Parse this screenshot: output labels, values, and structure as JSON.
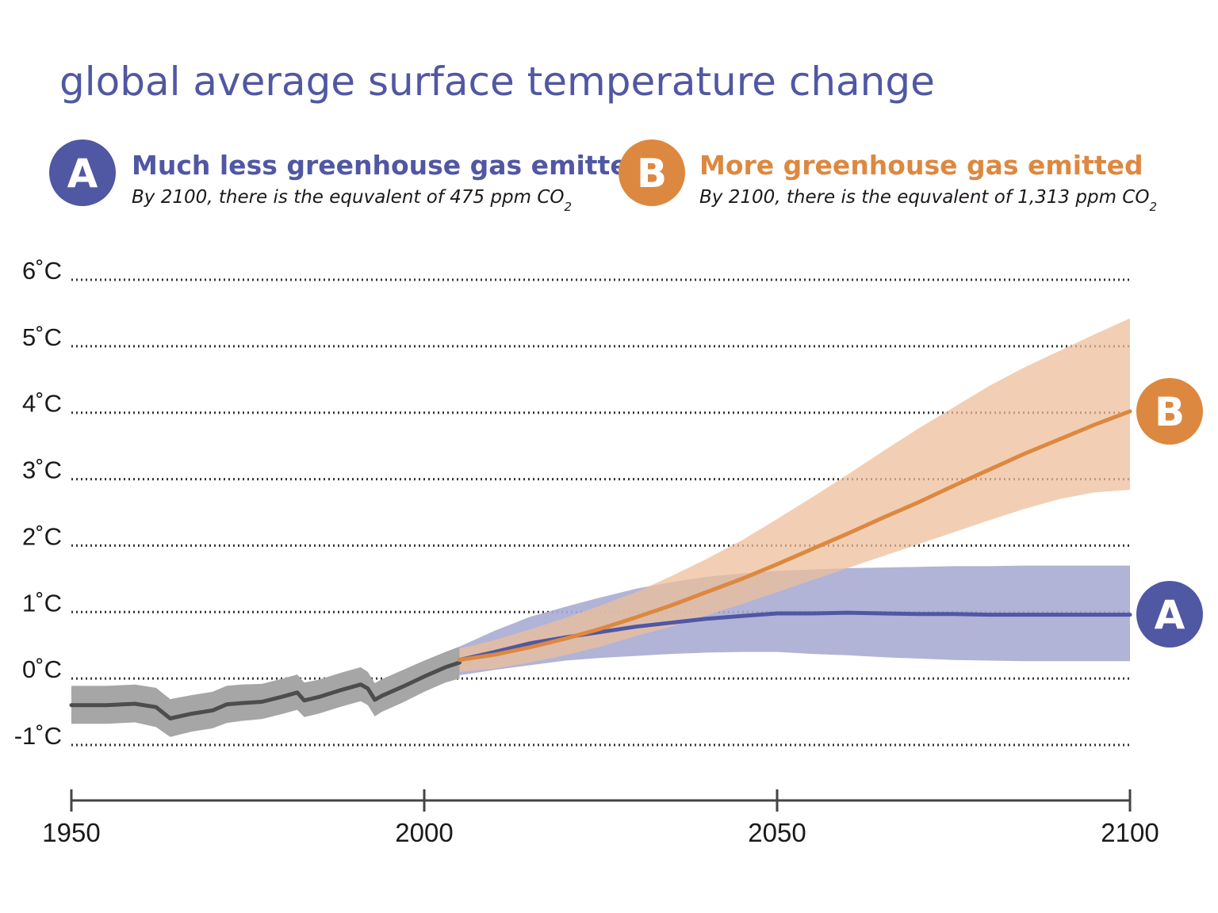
{
  "title": "global average surface temperature change",
  "legend": {
    "a": {
      "letter": "A",
      "heading": "Much less greenhouse gas emitted",
      "sub_prefix": "By 2100, there is the equvalent of 475 ppm CO",
      "sub_subscript": "2",
      "color": "#5057a3"
    },
    "b": {
      "letter": "B",
      "heading": "More greenhouse gas emitted",
      "sub_prefix": "By 2100, there is the equvalent of 1,313 ppm CO",
      "sub_subscript": "2",
      "color": "#dd8840"
    }
  },
  "end_labels": {
    "a": "A",
    "b": "B"
  },
  "colors": {
    "historical_line": "#4d4d4d",
    "historical_band": "#a6a6a6",
    "a_line": "#5057a3",
    "a_band": "#a8abd3",
    "b_line": "#dd8840",
    "b_band": "#eebf9b",
    "grid": "#333333"
  },
  "chart_data": {
    "type": "area",
    "title": "global average surface temperature change",
    "xlabel": "",
    "ylabel": "",
    "xlim": [
      1950,
      2100
    ],
    "ylim": [
      -1,
      6
    ],
    "x_ticks": [
      "1950",
      "2000",
      "2050",
      "2100"
    ],
    "y_ticks": [
      "6˚C",
      "5˚C",
      "4˚C",
      "3˚C",
      "2˚C",
      "1˚C",
      "0˚C",
      "-1˚C"
    ],
    "grid": true,
    "series": [
      {
        "key": "historical",
        "x": [
          1950,
          1955,
          1959,
          1962,
          1964,
          1967,
          1970,
          1972,
          1974,
          1977,
          1980,
          1982,
          1983,
          1985,
          1988,
          1991,
          1992,
          1993,
          1994,
          1997,
          2000,
          2003,
          2005
        ],
        "mean": [
          -0.4,
          -0.4,
          -0.38,
          -0.43,
          -0.6,
          -0.53,
          -0.48,
          -0.39,
          -0.37,
          -0.35,
          -0.27,
          -0.21,
          -0.33,
          -0.28,
          -0.18,
          -0.09,
          -0.15,
          -0.32,
          -0.26,
          -0.12,
          0.03,
          0.17,
          0.24
        ],
        "lower": [
          -0.68,
          -0.68,
          -0.66,
          -0.73,
          -0.88,
          -0.8,
          -0.75,
          -0.67,
          -0.64,
          -0.61,
          -0.53,
          -0.47,
          -0.58,
          -0.53,
          -0.43,
          -0.34,
          -0.4,
          -0.57,
          -0.5,
          -0.36,
          -0.2,
          -0.06,
          0.0
        ],
        "upper": [
          -0.11,
          -0.11,
          -0.09,
          -0.14,
          -0.31,
          -0.25,
          -0.2,
          -0.11,
          -0.09,
          -0.08,
          0.0,
          0.06,
          -0.06,
          -0.02,
          0.08,
          0.17,
          0.1,
          -0.07,
          -0.01,
          0.13,
          0.27,
          0.4,
          0.48
        ]
      },
      {
        "key": "A",
        "x": [
          2005,
          2010,
          2015,
          2020,
          2025,
          2030,
          2035,
          2040,
          2045,
          2050,
          2055,
          2060,
          2065,
          2070,
          2075,
          2080,
          2085,
          2090,
          2095,
          2100
        ],
        "mean": [
          0.28,
          0.4,
          0.53,
          0.62,
          0.7,
          0.78,
          0.84,
          0.9,
          0.94,
          0.98,
          0.98,
          0.99,
          0.98,
          0.97,
          0.97,
          0.96,
          0.96,
          0.96,
          0.96,
          0.96
        ],
        "lower": [
          0.05,
          0.13,
          0.2,
          0.27,
          0.31,
          0.34,
          0.37,
          0.39,
          0.4,
          0.4,
          0.37,
          0.35,
          0.32,
          0.3,
          0.28,
          0.27,
          0.26,
          0.26,
          0.26,
          0.26
        ],
        "upper": [
          0.48,
          0.72,
          0.93,
          1.08,
          1.22,
          1.35,
          1.45,
          1.53,
          1.58,
          1.62,
          1.64,
          1.66,
          1.67,
          1.68,
          1.69,
          1.69,
          1.7,
          1.7,
          1.7,
          1.7
        ]
      },
      {
        "key": "B",
        "x": [
          2005,
          2010,
          2015,
          2020,
          2025,
          2030,
          2035,
          2040,
          2045,
          2050,
          2055,
          2060,
          2065,
          2070,
          2075,
          2080,
          2085,
          2090,
          2095,
          2100
        ],
        "mean": [
          0.28,
          0.36,
          0.47,
          0.6,
          0.75,
          0.92,
          1.1,
          1.3,
          1.5,
          1.72,
          1.95,
          2.18,
          2.42,
          2.65,
          2.9,
          3.14,
          3.38,
          3.6,
          3.82,
          4.02
        ],
        "lower": [
          0.1,
          0.15,
          0.24,
          0.35,
          0.48,
          0.64,
          0.78,
          0.95,
          1.12,
          1.3,
          1.48,
          1.66,
          1.84,
          2.02,
          2.2,
          2.38,
          2.55,
          2.7,
          2.8,
          2.84
        ],
        "upper": [
          0.45,
          0.58,
          0.74,
          0.91,
          1.1,
          1.3,
          1.54,
          1.8,
          2.08,
          2.4,
          2.73,
          3.07,
          3.42,
          3.76,
          4.08,
          4.4,
          4.68,
          4.93,
          5.18,
          5.42
        ]
      }
    ]
  }
}
